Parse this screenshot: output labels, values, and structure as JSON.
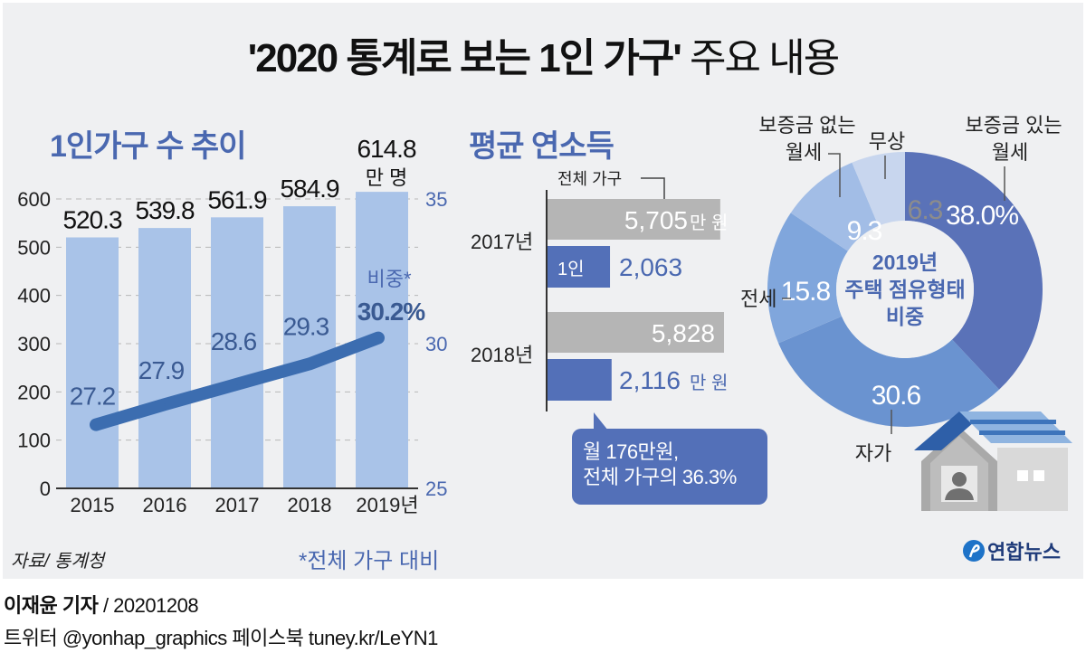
{
  "title": {
    "bold": "'2020 통계로 보는 1인 가구'",
    "light": "주요 내용"
  },
  "colors": {
    "background": "#eff0f2",
    "accent": "#4a68b0",
    "bar": "#a9c3e8",
    "line": "#3c6db0",
    "gray_bar": "#b5b5b5",
    "blue_bar": "#5370b8",
    "donut": [
      "#5a72b8",
      "#6a93d0",
      "#80a6dc",
      "#a2bde6",
      "#c8d6ee"
    ]
  },
  "chart_data": [
    {
      "type": "bar",
      "title": "1인가구 수 추이",
      "categories": [
        "2015",
        "2016",
        "2017",
        "2018",
        "2019년"
      ],
      "values": [
        520.3,
        539.8,
        561.9,
        584.9,
        614.8
      ],
      "value_labels": [
        "520.3",
        "539.8",
        "561.9",
        "584.9",
        "614.8"
      ],
      "unit_label": "만 명",
      "ylim": [
        0,
        600
      ],
      "yticks": [
        "0",
        "100",
        "200",
        "300",
        "400",
        "500",
        "600"
      ],
      "grid": true,
      "line_series": {
        "name": "비중*",
        "values": [
          27.2,
          27.9,
          28.6,
          29.3,
          30.2
        ],
        "value_labels": [
          "27.2",
          "27.9",
          "28.6",
          "29.3",
          "30.2%"
        ],
        "y2lim": [
          25,
          35
        ],
        "y2ticks": [
          "25",
          "30",
          "35"
        ]
      },
      "source": "자료/ 통계청",
      "footnote": "*전체 가구 대비"
    },
    {
      "type": "bar",
      "orientation": "horizontal",
      "title": "평균 연소득",
      "categories": [
        "2017년",
        "2018년"
      ],
      "series": [
        {
          "name": "전체 가구",
          "values": [
            5705,
            5828
          ],
          "value_labels": [
            "5,705",
            "5,828"
          ]
        },
        {
          "name": "1인",
          "values": [
            2063,
            2116
          ],
          "value_labels": [
            "2,063",
            "2,116"
          ]
        }
      ],
      "unit": "만 원",
      "callout_line1": "월 176만원,",
      "callout_line2": "전체 가구의 36.3%"
    },
    {
      "type": "pie",
      "donut": true,
      "title_lines": [
        "2019년",
        "주택 점유형태",
        "비중"
      ],
      "slices": [
        {
          "label": "보증금 있는 월세",
          "label_lines": [
            "보증금 있는",
            "월세"
          ],
          "value": 38.0,
          "value_label": "38.0%"
        },
        {
          "label": "자가",
          "label_lines": [
            "자가"
          ],
          "value": 30.6,
          "value_label": "30.6"
        },
        {
          "label": "전세",
          "label_lines": [
            "전세"
          ],
          "value": 15.8,
          "value_label": "15.8"
        },
        {
          "label": "보증금 없는 월세",
          "label_lines": [
            "보증금 없는",
            "월세"
          ],
          "value": 9.3,
          "value_label": "9.3"
        },
        {
          "label": "무상",
          "label_lines": [
            "무상"
          ],
          "value": 6.3,
          "value_label": "6.3"
        }
      ]
    }
  ],
  "logo": "연합뉴스",
  "footer": {
    "author": "이재윤 기자",
    "date": "/ 20201208",
    "social": "트위터 @yonhap_graphics  페이스북 tuney.kr/LeYN1"
  }
}
